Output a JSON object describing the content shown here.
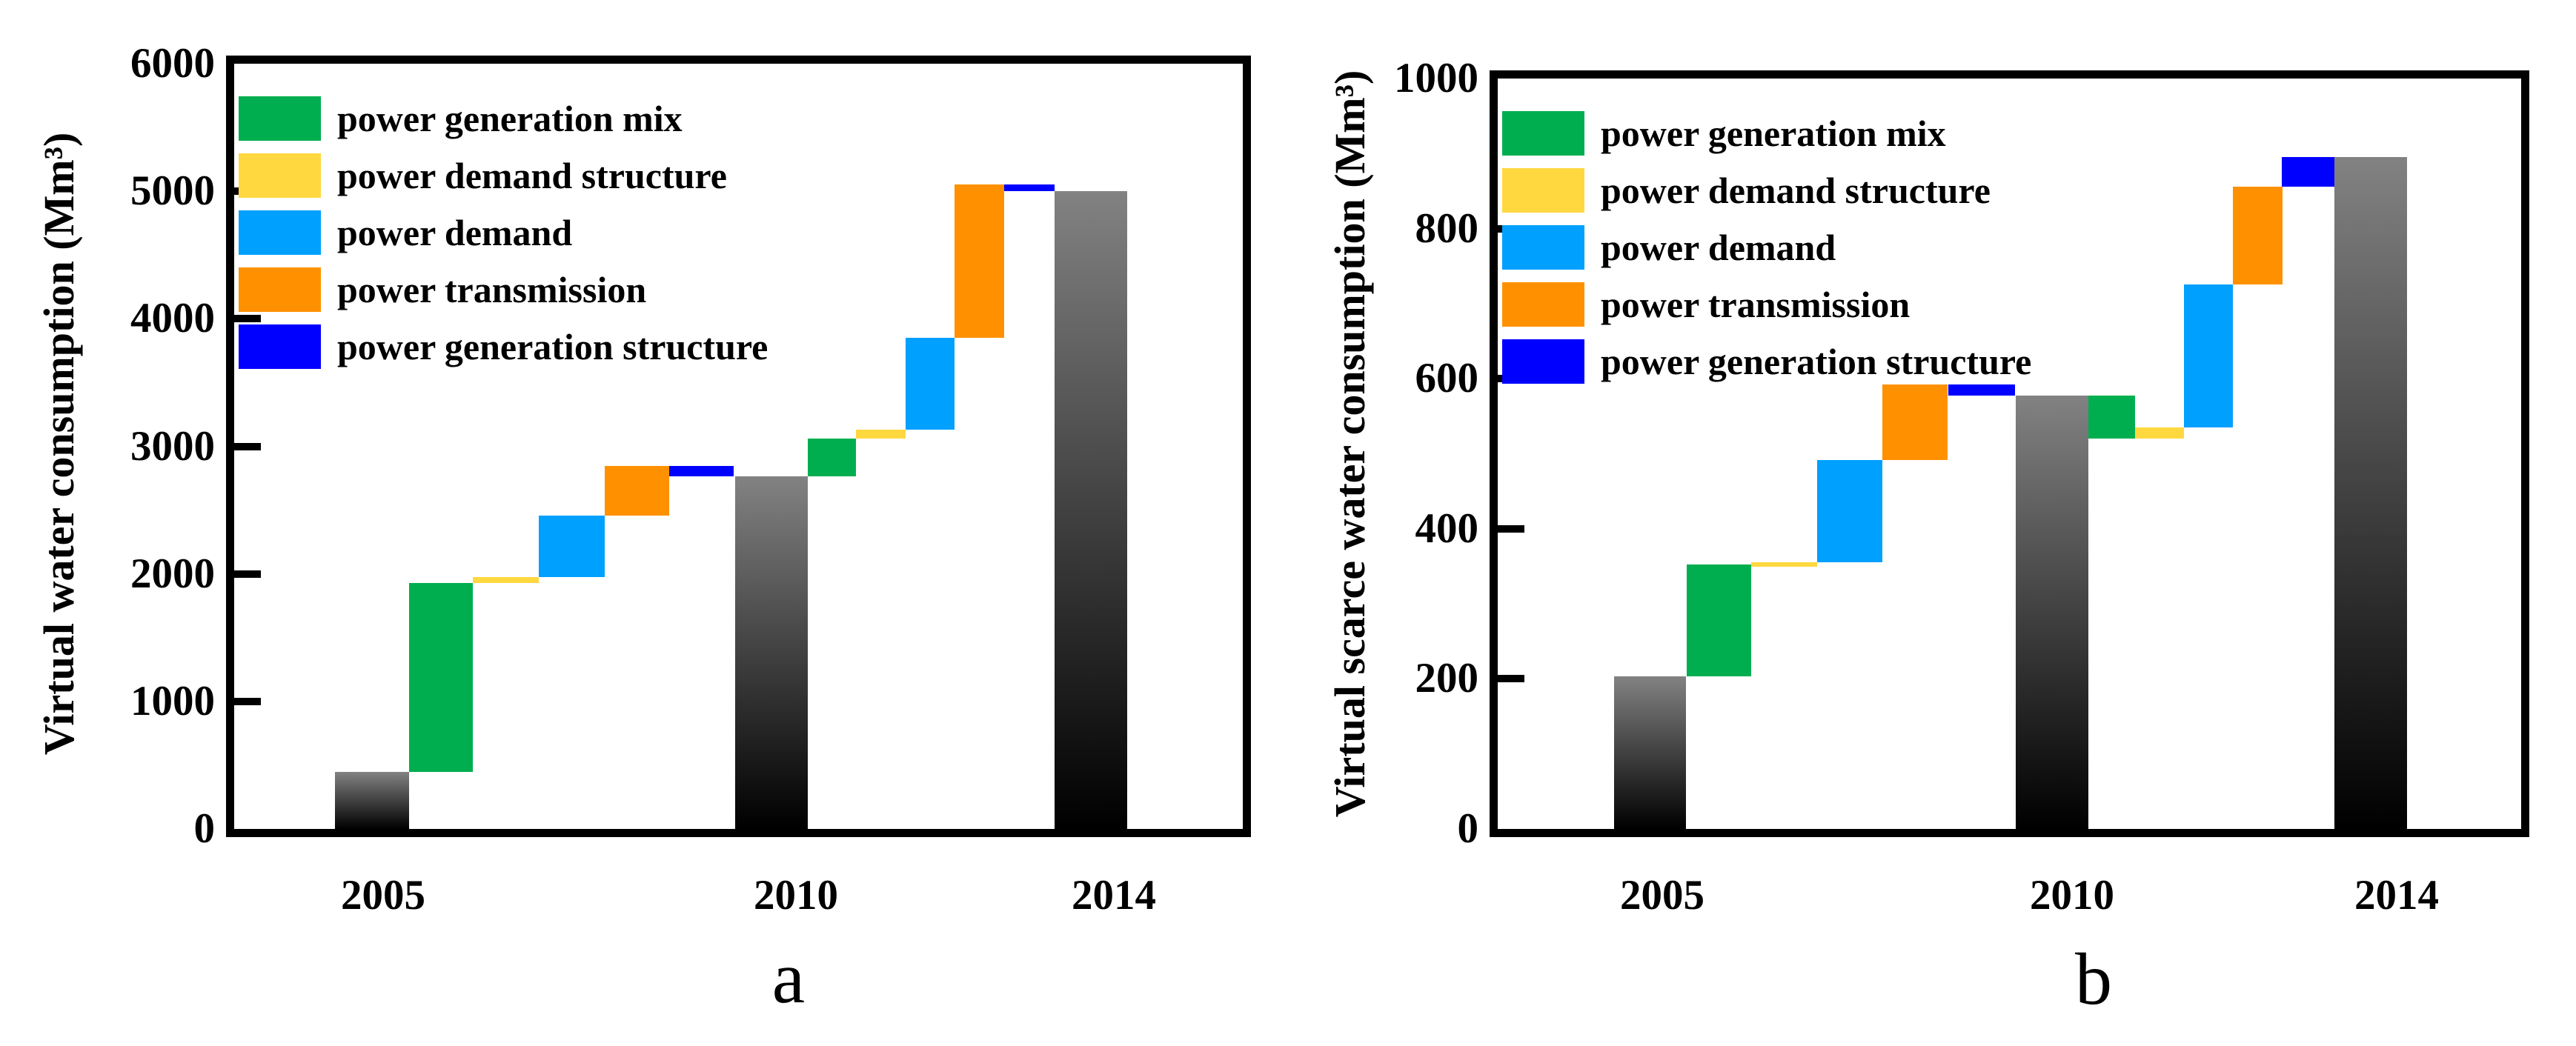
{
  "figure": {
    "background": "#ffffff"
  },
  "chart_data": [
    {
      "type": "bar",
      "subtype": "waterfall",
      "panel_label": "a",
      "ylabel": "Virtual water consumption (Mm³)",
      "ylim": [
        0,
        6000
      ],
      "ytick_step": 1000,
      "x_categories": [
        "2005",
        "2010",
        "2014"
      ],
      "legend_position": "top-left",
      "grid": false,
      "total_bar_gradient": [
        "#828282",
        "#000000"
      ],
      "legend": [
        {
          "label": "power generation mix",
          "color": "#00AE4F"
        },
        {
          "label": "power demand structure",
          "color": "#FFD840"
        },
        {
          "label": "power demand",
          "color": "#00A0FF"
        },
        {
          "label": "power transmission",
          "color": "#FF9100"
        },
        {
          "label": "power generation structure",
          "color": "#0000FF"
        }
      ],
      "totals": [
        {
          "year": "2005",
          "value": 450
        },
        {
          "year": "2010",
          "value": 2765
        },
        {
          "year": "2014",
          "value": 5000
        }
      ],
      "segments": [
        {
          "factor": "power generation mix",
          "from": 450,
          "to": 1930
        },
        {
          "factor": "power demand structure",
          "from": 1930,
          "to": 1975
        },
        {
          "factor": "power demand",
          "from": 1975,
          "to": 2455
        },
        {
          "factor": "power transmission",
          "from": 2455,
          "to": 2845
        },
        {
          "factor": "power generation structure",
          "from": 2845,
          "to": 2765
        },
        {
          "factor": "power generation mix",
          "from": 2765,
          "to": 3060
        },
        {
          "factor": "power demand structure",
          "from": 3060,
          "to": 3130
        },
        {
          "factor": "power demand",
          "from": 3130,
          "to": 3850
        },
        {
          "factor": "power transmission",
          "from": 3850,
          "to": 5055
        },
        {
          "factor": "power generation structure",
          "from": 5055,
          "to": 5000
        }
      ]
    },
    {
      "type": "bar",
      "subtype": "waterfall",
      "panel_label": "b",
      "ylabel": "Virtual scarce water consumption (Mm³)",
      "ylim": [
        0,
        1000
      ],
      "ytick_step": 200,
      "x_categories": [
        "2005",
        "2010",
        "2014"
      ],
      "legend_position": "top-left",
      "grid": false,
      "total_bar_gradient": [
        "#828282",
        "#000000"
      ],
      "legend": [
        {
          "label": "power generation mix",
          "color": "#00AE4F"
        },
        {
          "label": "power demand structure",
          "color": "#FFD840"
        },
        {
          "label": "power demand",
          "color": "#00A0FF"
        },
        {
          "label": "power transmission",
          "color": "#FF9100"
        },
        {
          "label": "power generation structure",
          "color": "#0000FF"
        }
      ],
      "totals": [
        {
          "year": "2005",
          "value": 203
        },
        {
          "year": "2010",
          "value": 577
        },
        {
          "year": "2014",
          "value": 895
        }
      ],
      "segments": [
        {
          "factor": "power generation mix",
          "from": 203,
          "to": 352
        },
        {
          "factor": "power demand structure",
          "from": 352,
          "to": 355
        },
        {
          "factor": "power demand",
          "from": 355,
          "to": 492
        },
        {
          "factor": "power transmission",
          "from": 492,
          "to": 592
        },
        {
          "factor": "power generation structure",
          "from": 592,
          "to": 577
        },
        {
          "factor": "power generation mix",
          "from": 577,
          "to": 520
        },
        {
          "factor": "power demand structure",
          "from": 520,
          "to": 535
        },
        {
          "factor": "power demand",
          "from": 535,
          "to": 726
        },
        {
          "factor": "power transmission",
          "from": 726,
          "to": 856
        },
        {
          "factor": "power generation structure",
          "from": 856,
          "to": 895
        }
      ]
    }
  ]
}
